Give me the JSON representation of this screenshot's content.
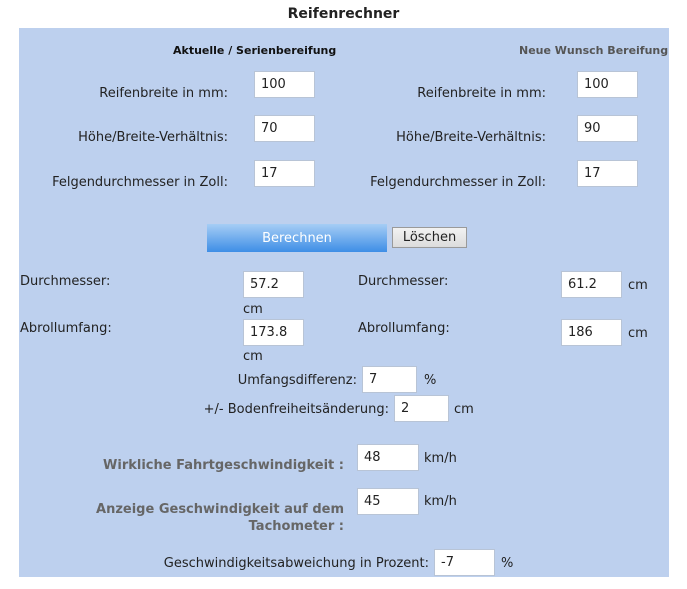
{
  "title": "Reifenrechner",
  "left": {
    "heading": "Aktuelle / Serienbereifung",
    "width_label": "Reifenbreite in mm:",
    "width_value": "100",
    "ratio_label": "Höhe/Breite-Verhältnis:",
    "ratio_value": "70",
    "rim_label": "Felgendurchmesser in Zoll:",
    "rim_value": "17"
  },
  "right": {
    "heading": "Neue Wunsch Bereifung",
    "width_label": "Reifenbreite in mm:",
    "width_value": "100",
    "ratio_label": "Höhe/Breite-Verhältnis:",
    "ratio_value": "90",
    "rim_label": "Felgendurchmesser in Zoll:",
    "rim_value": "17"
  },
  "buttons": {
    "calculate": "Berechnen",
    "clear": "Löschen"
  },
  "results": {
    "left_diameter_label": "Durchmesser:",
    "left_diameter_value": "57.2",
    "left_diameter_unit": "cm",
    "left_circumference_label": "Abrollumfang:",
    "left_circumference_value": "173.8",
    "left_circumference_unit": "cm",
    "right_diameter_label": "Durchmesser:",
    "right_diameter_value": "61.2",
    "right_diameter_unit": "cm",
    "right_circumference_label": "Abrollumfang:",
    "right_circumference_value": "186",
    "right_circumference_unit": "cm",
    "circumference_diff_label": "Umfangsdifferenz:",
    "circumference_diff_value": "7",
    "circumference_diff_unit": "%",
    "clearance_label": "+/-  Bodenfreiheitsänderung:",
    "clearance_value": "2",
    "clearance_unit": "cm"
  },
  "speed": {
    "actual_label": "Wirkliche Fahrtgeschwindigkeit :",
    "actual_value": "48",
    "actual_unit": "km/h",
    "display_label_line1": "Anzeige Geschwindigkeit auf dem",
    "display_label_line2": "Tachometer :",
    "display_value": "45",
    "display_unit": "km/h",
    "deviation_label": "Geschwindigkeitsabweichung in Prozent:",
    "deviation_value": "-7",
    "deviation_unit": "%"
  }
}
